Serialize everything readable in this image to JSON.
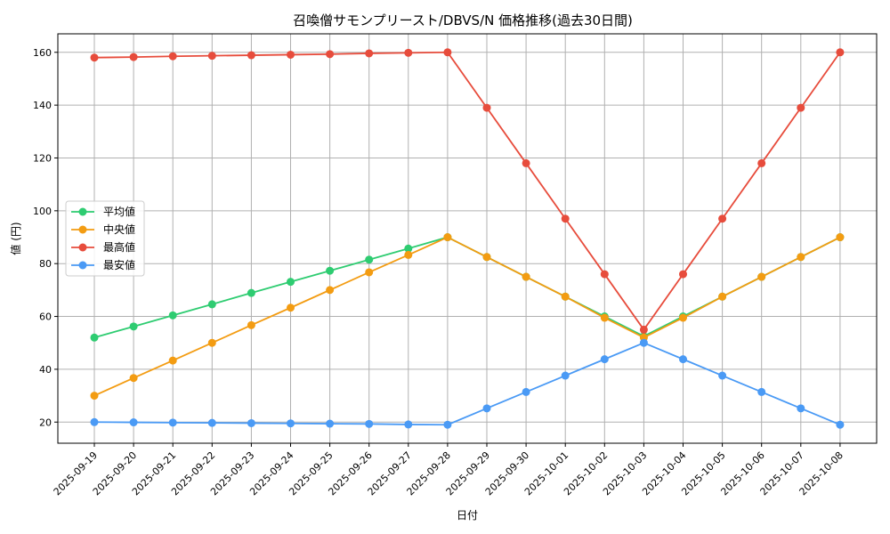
{
  "chart_data": {
    "type": "line",
    "title": "召喚僧サモンプリースト/DBVS/N 価格推移(過去30日間)",
    "xlabel": "日付",
    "ylabel": "値 (円)",
    "categories": [
      "2025-09-19",
      "2025-09-20",
      "2025-09-21",
      "2025-09-22",
      "2025-09-23",
      "2025-09-24",
      "2025-09-25",
      "2025-09-26",
      "2025-09-27",
      "2025-09-28",
      "2025-09-29",
      "2025-09-30",
      "2025-10-01",
      "2025-10-02",
      "2025-10-03",
      "2025-10-04",
      "2025-10-05",
      "2025-10-06",
      "2025-10-07",
      "2025-10-08"
    ],
    "ylim": [
      12,
      167
    ],
    "yticks": [
      20,
      40,
      60,
      80,
      100,
      120,
      140,
      160
    ],
    "grid": true,
    "legend_position": "center-left",
    "series": [
      {
        "name": "平均値",
        "color": "#2ecc71",
        "values": [
          52,
          56.2,
          60.4,
          64.6,
          68.9,
          73.1,
          77.3,
          81.5,
          85.7,
          90,
          82.5,
          75,
          67.5,
          60,
          52.5,
          60,
          67.5,
          75,
          82.5,
          90
        ]
      },
      {
        "name": "中央値",
        "color": "#f39c12",
        "values": [
          30,
          36.7,
          43.3,
          50,
          56.7,
          63.3,
          70,
          76.7,
          83.3,
          90,
          82.5,
          75,
          67.5,
          59.5,
          52,
          59.5,
          67.5,
          75,
          82.5,
          90
        ]
      },
      {
        "name": "最高値",
        "color": "#e74c3c",
        "values": [
          158,
          158.2,
          158.5,
          158.7,
          158.9,
          159.1,
          159.3,
          159.6,
          159.8,
          160,
          139,
          118,
          97,
          76,
          55,
          76,
          97,
          118,
          139,
          160
        ]
      },
      {
        "name": "最安値",
        "color": "#4a9af5",
        "values": [
          20,
          19.9,
          19.8,
          19.7,
          19.6,
          19.5,
          19.4,
          19.3,
          19.1,
          19,
          25.2,
          31.4,
          37.6,
          43.8,
          50,
          43.8,
          37.6,
          31.4,
          25.2,
          19
        ]
      }
    ]
  }
}
